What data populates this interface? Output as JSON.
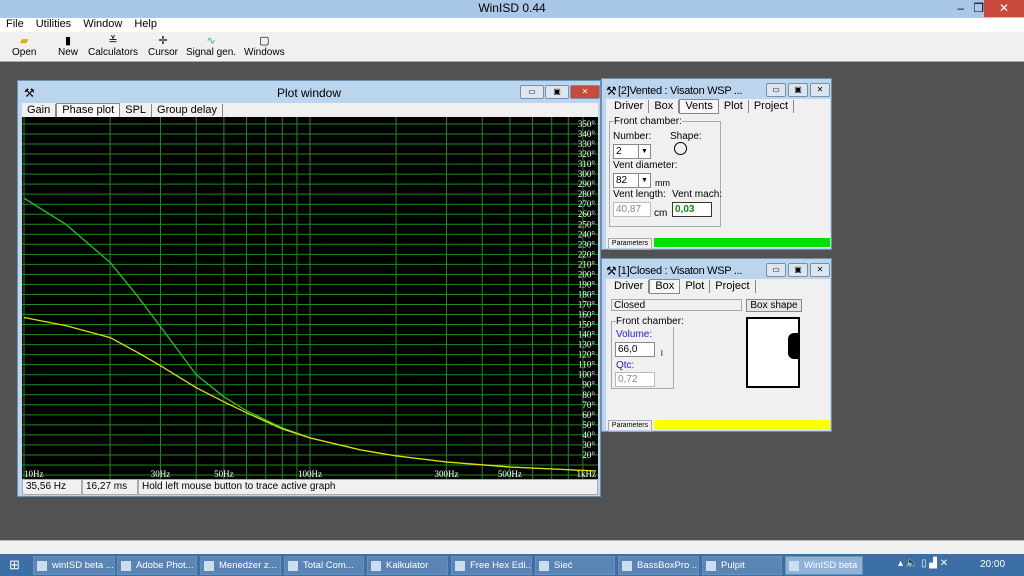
{
  "app": {
    "title": "WinISD 0.44"
  },
  "menu": [
    "File",
    "Utilities",
    "Window",
    "Help"
  ],
  "toolbar": [
    {
      "label": "Open",
      "icon": "folder-open-icon"
    },
    {
      "label": "New",
      "icon": "new-speaker-icon"
    },
    {
      "label": "Calculators",
      "icon": "calculator-icon"
    },
    {
      "label": "Cursor",
      "icon": "cursor-crosshair-icon"
    },
    {
      "label": "Signal gen.",
      "icon": "sine-wave-icon"
    },
    {
      "label": "Windows",
      "icon": "window-icon"
    }
  ],
  "plot_window": {
    "title": "Plot window",
    "tabs": [
      "Gain",
      "Phase plot",
      "SPL",
      "Group delay"
    ],
    "active_tab": "Phase plot",
    "status": {
      "freq": "35,56 Hz",
      "delay": "16,27 ms",
      "hint": "Hold left mouse button to trace active graph"
    }
  },
  "chart_data": {
    "type": "line",
    "xscale": "log",
    "xlim": [
      10,
      1000
    ],
    "ylim": [
      0,
      355
    ],
    "x_ticks": [
      "10Hz",
      "30Hz",
      "50Hz",
      "100Hz",
      "300Hz",
      "500Hz",
      "1kHz"
    ],
    "x_tick_values": [
      10,
      30,
      50,
      100,
      300,
      500,
      1000
    ],
    "y_ticks": [
      "350°",
      "340°",
      "330°",
      "320°",
      "310°",
      "300°",
      "290°",
      "280°",
      "270°",
      "260°",
      "250°",
      "240°",
      "230°",
      "220°",
      "210°",
      "200°",
      "190°",
      "180°",
      "170°",
      "160°",
      "150°",
      "140°",
      "130°",
      "120°",
      "110°",
      "100°",
      "90°",
      "80°",
      "70°",
      "60°",
      "50°",
      "40°",
      "30°",
      "20°"
    ],
    "y_tick_values": [
      350,
      340,
      330,
      320,
      310,
      300,
      290,
      280,
      270,
      260,
      250,
      240,
      230,
      220,
      210,
      200,
      190,
      180,
      170,
      160,
      150,
      140,
      130,
      120,
      110,
      100,
      90,
      80,
      70,
      60,
      50,
      40,
      30,
      20
    ],
    "grid": true,
    "background": "#000000",
    "grid_color": "#1f8a1f",
    "series": [
      {
        "color": "#22c422",
        "x": [
          10,
          14,
          20,
          25,
          30,
          40,
          50,
          60,
          80,
          100,
          150,
          200,
          300,
          500,
          1000
        ],
        "y": [
          276,
          250,
          212,
          178,
          148,
          100,
          78,
          64,
          47,
          37,
          25,
          19,
          13,
          8,
          4
        ]
      },
      {
        "color": "#e0e000",
        "x": [
          10,
          14,
          20,
          25,
          30,
          40,
          50,
          60,
          80,
          100,
          150,
          200,
          300,
          500,
          1000
        ],
        "y": [
          157,
          149,
          137,
          122,
          109,
          87,
          73,
          62,
          46,
          37,
          25,
          19,
          13,
          8,
          4
        ]
      }
    ]
  },
  "vented": {
    "title": "[2]Vented : Visaton WSP ...",
    "tabs": [
      "Driver",
      "Box",
      "Vents",
      "Plot",
      "Project"
    ],
    "active_tab": "Vents",
    "group": "Front chamber:",
    "number_label": "Number:",
    "number": "2",
    "shape_label": "Shape:",
    "diam_label": "Vent diameter:",
    "diam": "82",
    "diam_unit": "mm",
    "len_label": "Vent length:",
    "len": "40,87",
    "len_unit": "cm",
    "mach_label": "Vent mach:",
    "mach": "0,03",
    "params": "Parameters",
    "status_color": "#00e000"
  },
  "closed": {
    "title": "[1]Closed : Visaton WSP ...",
    "tabs": [
      "Driver",
      "Box",
      "Plot",
      "Project"
    ],
    "active_tab": "Box",
    "type": "Closed",
    "box_shape": "Box shape",
    "group": "Front chamber:",
    "vol_label": "Volume:",
    "vol": "66,0",
    "vol_unit": "l",
    "qtc_label": "Qtc:",
    "qtc": "0,72",
    "params": "Parameters",
    "status_color": "#ffff00"
  },
  "taskbar": {
    "items": [
      "winISD beta ...",
      "Adobe Phot...",
      "Menedżer z...",
      "Total Com...",
      "Kalkulator",
      "Free Hex Edi...",
      "Sieć",
      "BassBoxPro ...",
      "Pulpit",
      "WinISD beta"
    ],
    "clock": "20:00"
  }
}
